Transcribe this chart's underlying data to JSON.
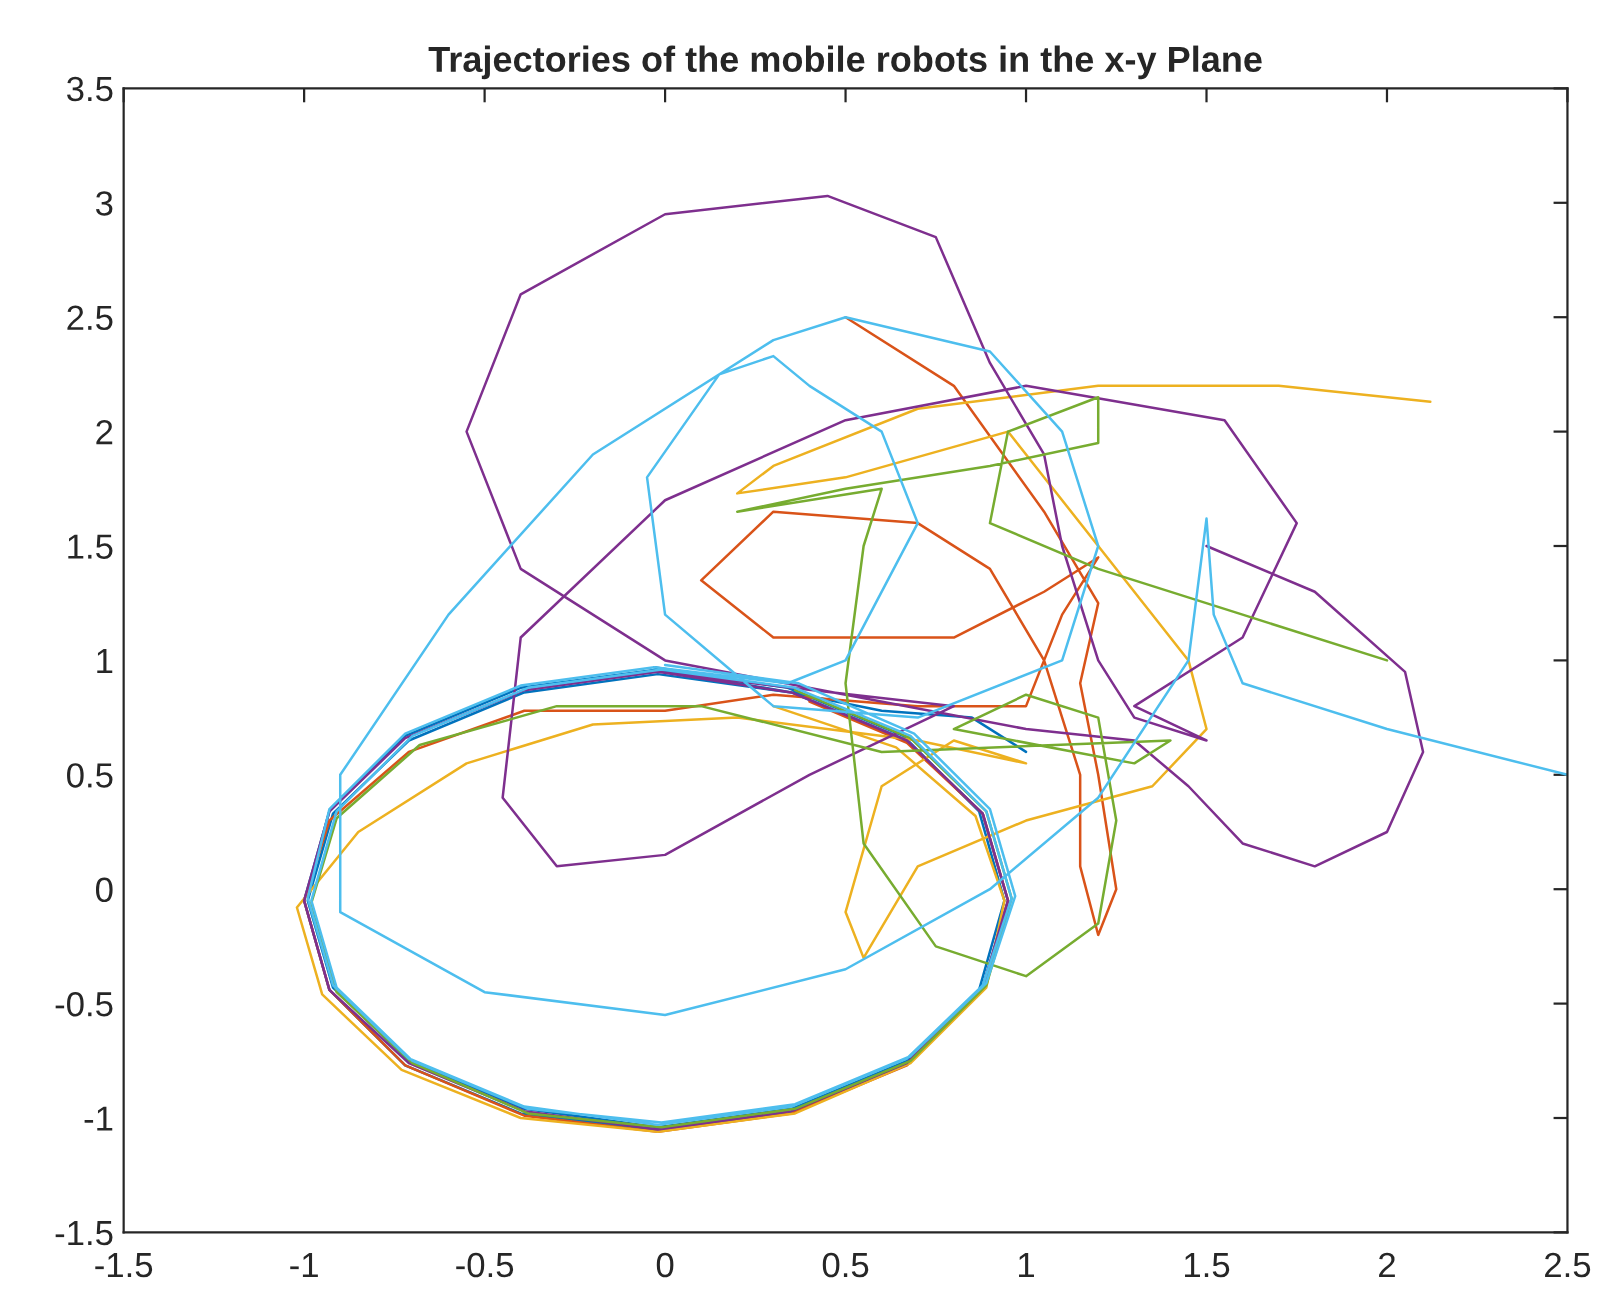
{
  "chart_data": {
    "type": "line",
    "title": "Trajectories of the mobile robots in the x-y Plane",
    "xlim": [
      -1.5,
      2.5
    ],
    "ylim": [
      -1.5,
      3.5
    ],
    "xticks": [
      -1.5,
      -1,
      -0.5,
      0,
      0.5,
      1,
      1.5,
      2,
      2.5
    ],
    "yticks": [
      -1.5,
      -1,
      -0.5,
      0,
      0.5,
      1,
      1.5,
      2,
      2.5,
      3,
      3.5
    ],
    "grid": false,
    "legend": false,
    "marker": "none",
    "line_style": "solid",
    "series": [
      {
        "color": "#0072bd",
        "x": [
          1.0,
          0.85,
          0.6,
          0.35,
          -0.02,
          -0.39,
          -0.71,
          -0.92,
          -0.99,
          -0.92,
          -0.71,
          -0.39,
          -0.02,
          0.35,
          0.67,
          0.88,
          0.95,
          0.88,
          0.67,
          0.35,
          -0.02,
          -0.4,
          -0.72,
          -0.93,
          -1.0,
          -0.93,
          -0.72,
          -0.4,
          -0.03,
          0.34,
          0.66,
          0.87,
          0.94,
          0.87,
          0.66,
          0.34,
          -0.03
        ],
        "values": [
          0.6,
          0.75,
          0.78,
          0.86,
          0.94,
          0.86,
          0.65,
          0.33,
          -0.05,
          -0.43,
          -0.75,
          -0.96,
          -1.04,
          -0.96,
          -0.75,
          -0.43,
          -0.05,
          0.33,
          0.65,
          0.86,
          0.96,
          0.88,
          0.67,
          0.34,
          -0.05,
          -0.44,
          -0.77,
          -0.98,
          -1.05,
          -0.98,
          -0.77,
          -0.44,
          -0.05,
          0.34,
          0.67,
          0.88,
          0.97
        ]
      },
      {
        "color": "#d95319",
        "x": [
          0.5,
          0.8,
          1.05,
          1.2,
          1.15,
          1.2,
          1.25,
          1.2,
          1.15,
          1.15,
          1.05,
          0.9,
          0.7,
          0.3,
          0.1,
          0.3,
          0.8,
          1.05,
          1.2,
          1.1,
          1.0,
          0.7,
          0.3,
          0.0,
          -0.39,
          -0.71,
          -0.93,
          -1.0,
          -0.93,
          -0.72,
          -0.39,
          -0.02,
          0.35,
          0.67,
          0.88,
          0.95,
          0.88,
          0.67,
          0.4
        ],
        "values": [
          2.5,
          2.2,
          1.65,
          1.25,
          0.9,
          0.5,
          0.0,
          -0.2,
          0.1,
          0.5,
          1.0,
          1.4,
          1.6,
          1.65,
          1.35,
          1.1,
          1.1,
          1.3,
          1.45,
          1.2,
          0.8,
          0.8,
          0.85,
          0.78,
          0.78,
          0.6,
          0.3,
          -0.05,
          -0.44,
          -0.77,
          -0.99,
          -1.06,
          -0.98,
          -0.77,
          -0.44,
          -0.05,
          0.33,
          0.64,
          0.82
        ]
      },
      {
        "color": "#edb120",
        "x": [
          2.12,
          1.7,
          1.2,
          0.7,
          0.3,
          0.2,
          0.5,
          0.95,
          1.2,
          1.45,
          1.5,
          1.35,
          1.0,
          0.7,
          0.55,
          0.5,
          0.6,
          0.8,
          1.0,
          0.7,
          0.2,
          -0.2,
          -0.55,
          -0.85,
          -1.02,
          -0.95,
          -0.73,
          -0.4,
          -0.02,
          0.36,
          0.68,
          0.89,
          0.94,
          0.86,
          0.64,
          0.3
        ],
        "values": [
          2.13,
          2.2,
          2.2,
          2.1,
          1.85,
          1.73,
          1.8,
          2.0,
          1.5,
          1.0,
          0.7,
          0.45,
          0.3,
          0.1,
          -0.3,
          -0.1,
          0.45,
          0.65,
          0.55,
          0.65,
          0.75,
          0.72,
          0.55,
          0.25,
          -0.08,
          -0.46,
          -0.79,
          -1.0,
          -1.06,
          -0.98,
          -0.76,
          -0.43,
          -0.05,
          0.32,
          0.62,
          0.8
        ]
      },
      {
        "color": "#7e2f8e",
        "x": [
          1.5,
          1.8,
          2.05,
          2.1,
          2.0,
          1.8,
          1.6,
          1.45,
          1.3,
          1.0,
          0.5,
          0.0,
          -0.4,
          -0.55,
          -0.4,
          0.0,
          0.45,
          0.75,
          0.9,
          1.05,
          1.1,
          1.2,
          1.3,
          1.5,
          1.3,
          1.6,
          1.75,
          1.55,
          1.0,
          0.5,
          0.0,
          -0.4,
          -0.45,
          -0.3,
          0.0,
          0.4,
          0.8,
          0.35,
          -0.02,
          -0.39,
          -0.72,
          -0.93,
          -1.0,
          -0.93,
          -0.71,
          -0.39,
          -0.02,
          0.35,
          0.67,
          0.88,
          0.95,
          0.88,
          0.67,
          0.35,
          -0.02
        ],
        "values": [
          1.5,
          1.3,
          0.95,
          0.6,
          0.25,
          0.1,
          0.2,
          0.45,
          0.65,
          0.7,
          0.85,
          1.0,
          1.4,
          2.0,
          2.6,
          2.95,
          3.03,
          2.85,
          2.3,
          1.9,
          1.5,
          1.0,
          0.75,
          0.65,
          0.8,
          1.1,
          1.6,
          2.05,
          2.2,
          2.05,
          1.7,
          1.1,
          0.4,
          0.1,
          0.15,
          0.5,
          0.8,
          0.88,
          0.95,
          0.87,
          0.66,
          0.34,
          -0.05,
          -0.44,
          -0.76,
          -0.97,
          -1.05,
          -0.97,
          -0.76,
          -0.43,
          -0.05,
          0.33,
          0.65,
          0.86,
          0.95
        ]
      },
      {
        "color": "#77ac30",
        "x": [
          2.0,
          1.6,
          1.2,
          0.9,
          0.95,
          1.2,
          1.2,
          0.9,
          0.5,
          0.2,
          0.6,
          0.55,
          0.5,
          0.55,
          0.75,
          1.0,
          1.2,
          1.25,
          1.2,
          1.0,
          0.8,
          1.3,
          1.4,
          0.6,
          0.1,
          -0.3,
          -0.68,
          -0.91,
          -0.98,
          -0.91,
          -0.7,
          -0.38,
          -0.01,
          0.36,
          0.68,
          0.89,
          0.96,
          0.89,
          0.68,
          0.36
        ],
        "values": [
          1.0,
          1.2,
          1.4,
          1.6,
          2.0,
          2.15,
          1.95,
          1.85,
          1.75,
          1.65,
          1.75,
          1.5,
          0.9,
          0.2,
          -0.25,
          -0.38,
          -0.15,
          0.3,
          0.75,
          0.85,
          0.7,
          0.55,
          0.65,
          0.6,
          0.8,
          0.8,
          0.63,
          0.31,
          -0.06,
          -0.45,
          -0.76,
          -0.98,
          -1.04,
          -0.96,
          -0.75,
          -0.42,
          -0.04,
          0.34,
          0.66,
          0.87
        ]
      },
      {
        "color": "#4dbeee",
        "x": [
          2.5,
          2.0,
          1.6,
          1.52,
          1.5,
          1.45,
          1.2,
          0.9,
          0.5,
          0.0,
          -0.5,
          -0.9,
          -0.9,
          -0.6,
          -0.2,
          0.3,
          0.5,
          0.9,
          1.1,
          1.2,
          1.1,
          0.7,
          0.3,
          0.0,
          -0.05,
          0.15,
          0.3,
          0.4,
          0.6,
          0.7,
          0.5,
          0.34,
          -0.03,
          -0.4,
          -0.72,
          -0.93,
          -0.99,
          -0.92,
          -0.71,
          -0.39,
          -0.02,
          0.35,
          0.67,
          0.88,
          0.96,
          0.89,
          0.68,
          0.36,
          -0.01,
          -0.38,
          -0.7,
          -0.91,
          -0.98,
          -0.91,
          -0.7,
          -0.38,
          -0.01,
          0.36,
          0.68,
          0.89,
          0.97,
          0.9,
          0.69,
          0.37,
          0.0
        ],
        "values": [
          0.5,
          0.7,
          0.9,
          1.2,
          1.62,
          1.0,
          0.4,
          0.0,
          -0.35,
          -0.55,
          -0.45,
          -0.1,
          0.5,
          1.2,
          1.9,
          2.4,
          2.5,
          2.35,
          2.0,
          1.5,
          1.0,
          0.75,
          0.8,
          1.2,
          1.8,
          2.25,
          2.33,
          2.2,
          2.0,
          1.6,
          1.0,
          0.9,
          0.97,
          0.89,
          0.68,
          0.35,
          -0.04,
          -0.42,
          -0.74,
          -0.95,
          -1.03,
          -0.95,
          -0.74,
          -0.42,
          -0.04,
          0.34,
          0.67,
          0.88,
          0.96,
          0.88,
          0.67,
          0.34,
          -0.05,
          -0.43,
          -0.75,
          -0.96,
          -1.02,
          -0.94,
          -0.73,
          -0.41,
          -0.03,
          0.35,
          0.68,
          0.9,
          0.98
        ]
      }
    ]
  }
}
